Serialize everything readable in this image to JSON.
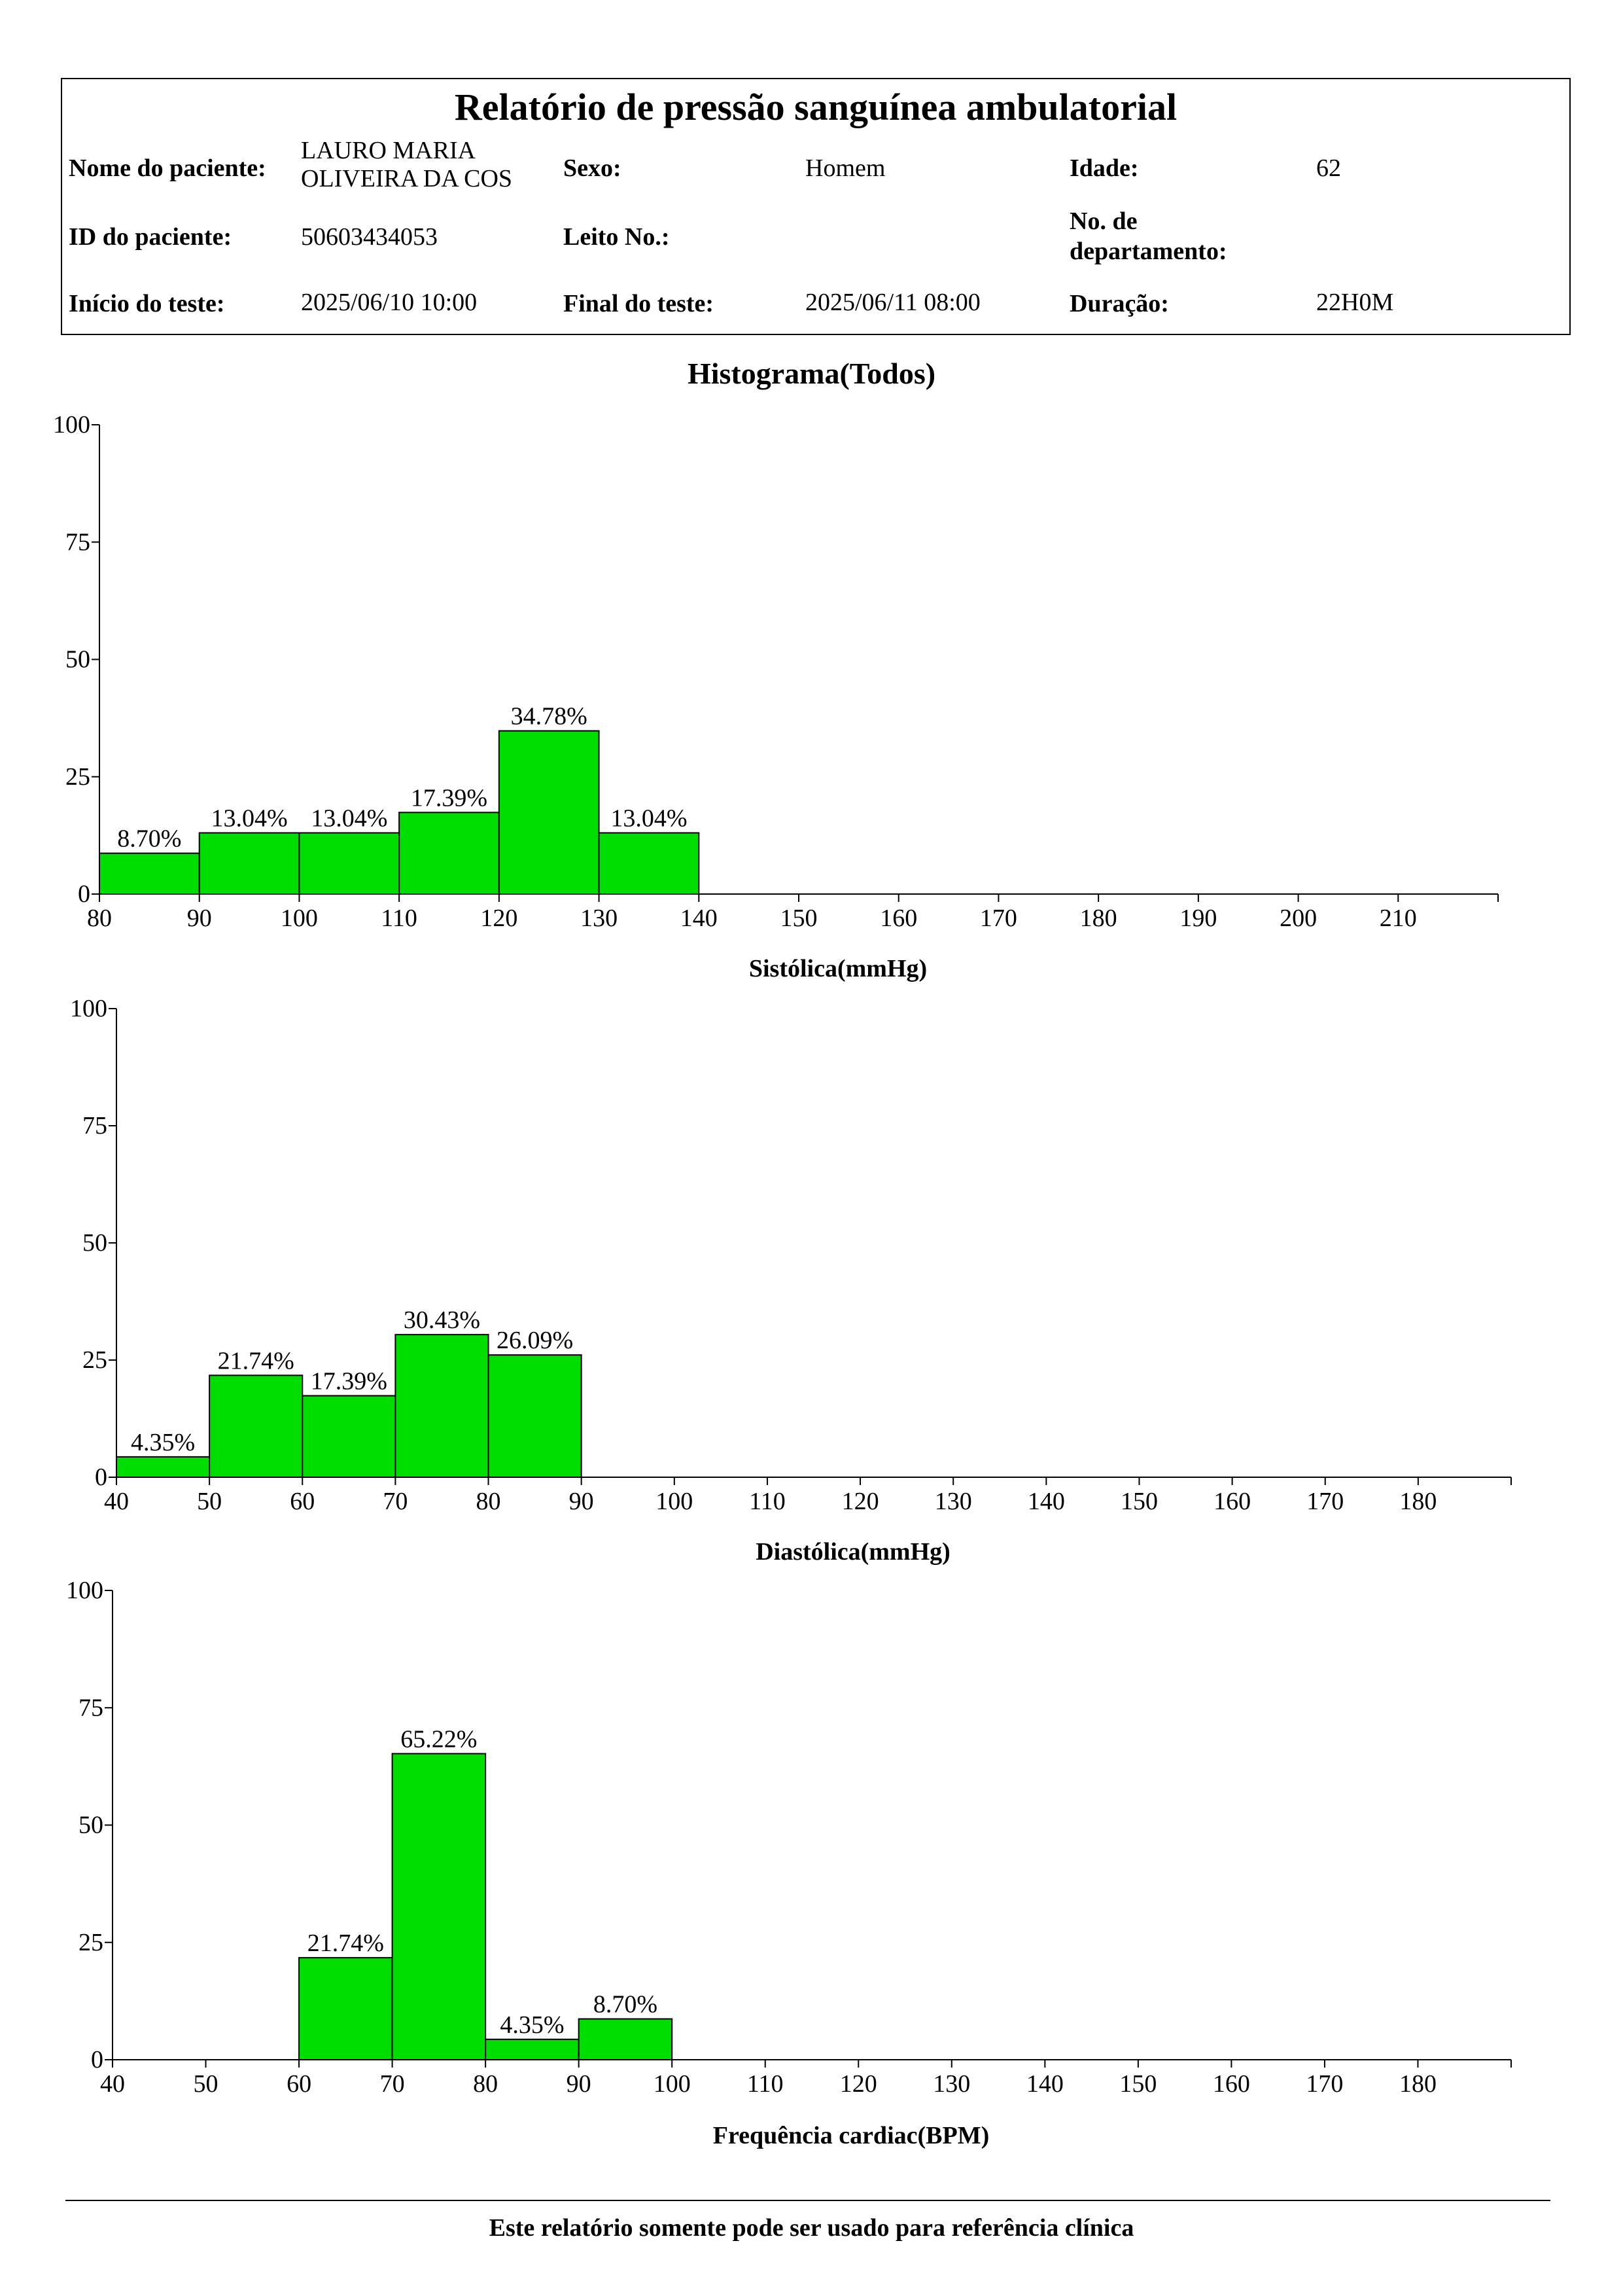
{
  "report": {
    "title": "Relatório de pressão sanguínea ambulatorial",
    "patient_name_label": "Nome do paciente:",
    "patient_name_line1": "LAURO MARIA",
    "patient_name_line2": "OLIVEIRA  DA COS",
    "sex_label": "Sexo:",
    "sex_value": "Homem",
    "age_label": "Idade:",
    "age_value": "62",
    "patient_id_label": "ID do paciente:",
    "patient_id_value": "50603434053",
    "bed_label": "Leito No.:",
    "bed_value": "",
    "dept_label_line1": "No. de",
    "dept_label_line2": "departamento:",
    "dept_value": "",
    "start_label": "Início do teste:",
    "start_value": "2025/06/10 10:00",
    "end_label": "Final do teste:",
    "end_value": "2025/06/11 08:00",
    "duration_label": "Duração:",
    "duration_value": "22H0M"
  },
  "main_title": "Histograma(Todos)",
  "footer": "Este relatório somente pode ser usado para referência clínica",
  "colors": {
    "bar_fill": "#00DD00",
    "bar_stroke": "#000000"
  },
  "chart_data": [
    {
      "type": "bar",
      "xlabel": "Sistólica(mmHg)",
      "ylabel": "",
      "ylim": [
        0,
        100
      ],
      "yticks": [
        0,
        25,
        50,
        75,
        100
      ],
      "xlim": [
        80,
        220
      ],
      "xticks": [
        80,
        90,
        100,
        110,
        120,
        130,
        140,
        150,
        160,
        170,
        180,
        190,
        200,
        210
      ],
      "bins": [
        {
          "start": 80,
          "end": 90,
          "value": 8.7,
          "label": "8.70%"
        },
        {
          "start": 90,
          "end": 100,
          "value": 13.04,
          "label": "13.04%"
        },
        {
          "start": 100,
          "end": 110,
          "value": 13.04,
          "label": "13.04%"
        },
        {
          "start": 110,
          "end": 120,
          "value": 17.39,
          "label": "17.39%"
        },
        {
          "start": 120,
          "end": 130,
          "value": 34.78,
          "label": "34.78%"
        },
        {
          "start": 130,
          "end": 140,
          "value": 13.04,
          "label": "13.04%"
        }
      ]
    },
    {
      "type": "bar",
      "xlabel": "Diastólica(mmHg)",
      "ylabel": "",
      "ylim": [
        0,
        100
      ],
      "yticks": [
        0,
        25,
        50,
        75,
        100
      ],
      "xlim": [
        40,
        190
      ],
      "xticks": [
        40,
        50,
        60,
        70,
        80,
        90,
        100,
        110,
        120,
        130,
        140,
        150,
        160,
        170,
        180
      ],
      "bins": [
        {
          "start": 40,
          "end": 50,
          "value": 4.35,
          "label": "4.35%"
        },
        {
          "start": 50,
          "end": 60,
          "value": 21.74,
          "label": "21.74%"
        },
        {
          "start": 60,
          "end": 70,
          "value": 17.39,
          "label": "17.39%"
        },
        {
          "start": 70,
          "end": 80,
          "value": 30.43,
          "label": "30.43%"
        },
        {
          "start": 80,
          "end": 90,
          "value": 26.09,
          "label": "26.09%"
        }
      ]
    },
    {
      "type": "bar",
      "xlabel": "Frequência cardiac(BPM)",
      "ylabel": "",
      "ylim": [
        0,
        100
      ],
      "yticks": [
        0,
        25,
        50,
        75,
        100
      ],
      "xlim": [
        40,
        190
      ],
      "xticks": [
        40,
        50,
        60,
        70,
        80,
        90,
        100,
        110,
        120,
        130,
        140,
        150,
        160,
        170,
        180
      ],
      "bins": [
        {
          "start": 60,
          "end": 70,
          "value": 21.74,
          "label": "21.74%"
        },
        {
          "start": 70,
          "end": 80,
          "value": 65.22,
          "label": "65.22%"
        },
        {
          "start": 80,
          "end": 90,
          "value": 4.35,
          "label": "4.35%"
        },
        {
          "start": 90,
          "end": 100,
          "value": 8.7,
          "label": "8.70%"
        }
      ]
    }
  ]
}
